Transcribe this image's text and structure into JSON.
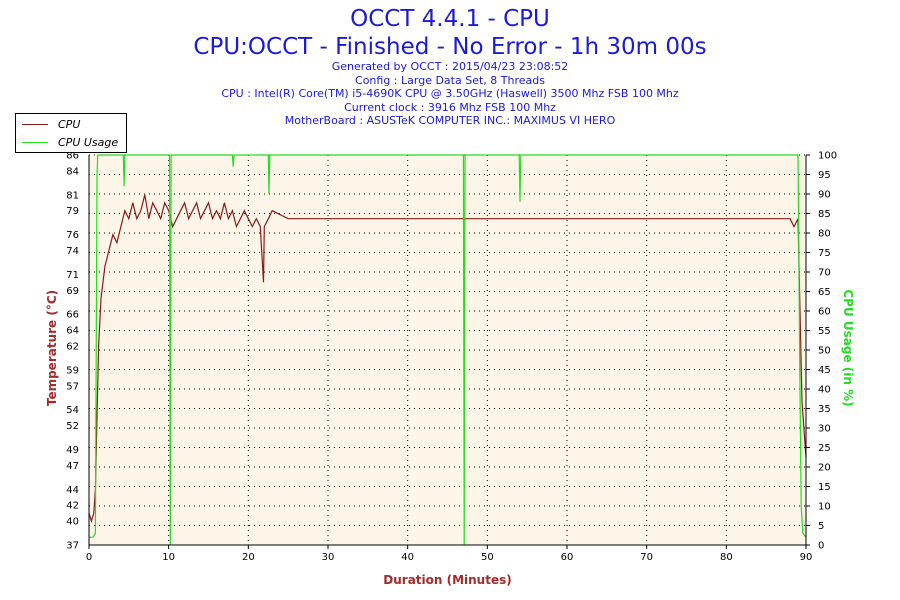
{
  "header": {
    "title": "OCCT 4.4.1 - CPU",
    "subtitle": "CPU:OCCT - Finished - No Error - 1h 30m 00s",
    "info": [
      "Generated by OCCT : 2015/04/23 23:08:52",
      "Config : Large Data Set, 8 Threads",
      "CPU : Intel(R) Core(TM) i5-4690K CPU @ 3.50GHz (Haswell) 3500 Mhz FSB 100 Mhz",
      "Current clock : 3916 Mhz FSB 100 Mhz",
      "MotherBoard : ASUSTeK COMPUTER INC.: MAXIMUS VI HERO"
    ]
  },
  "colors": {
    "temperature": "#8b1a1a",
    "usage": "#22dd22",
    "plot_bg": "#fdf6e8",
    "axis_label_left": "#a52a2a",
    "axis_label_right": "#22dd22",
    "title": "#1a1ad9"
  },
  "chart_data": {
    "type": "line",
    "title": "OCCT 4.4.1 - CPU",
    "xlabel": "Duration (Minutes)",
    "ylabel_left": "Temperature (°C)",
    "ylabel_right": "CPU Usage (in %)",
    "xlim": [
      0,
      90
    ],
    "ylim_left": [
      37,
      86
    ],
    "ylim_right": [
      0,
      100
    ],
    "x_ticks": [
      0,
      10,
      20,
      30,
      40,
      50,
      60,
      70,
      80,
      90
    ],
    "y_ticks_left": [
      37,
      40,
      42,
      44,
      47,
      49,
      52,
      54,
      57,
      59,
      62,
      64,
      66,
      69,
      71,
      74,
      76,
      79,
      81,
      84,
      86
    ],
    "y_ticks_right": [
      0,
      5,
      10,
      15,
      20,
      25,
      30,
      35,
      40,
      45,
      50,
      55,
      60,
      65,
      70,
      75,
      80,
      85,
      90,
      95,
      100
    ],
    "grid": true,
    "legend_position": "top-left",
    "series": [
      {
        "name": "CPU",
        "axis": "left",
        "x": [
          0,
          0.3,
          0.6,
          0.8,
          1.0,
          1.2,
          1.5,
          2.0,
          2.5,
          3.0,
          3.5,
          4.0,
          4.5,
          5.0,
          5.5,
          6.0,
          6.5,
          7.0,
          7.5,
          8.0,
          8.5,
          9.0,
          9.5,
          10.0,
          10.5,
          11.0,
          11.5,
          12.0,
          12.5,
          13.0,
          13.5,
          14.0,
          14.5,
          15.0,
          15.5,
          16.0,
          16.5,
          17.0,
          17.5,
          18.0,
          18.5,
          19.0,
          19.5,
          20.0,
          20.5,
          21.0,
          21.5,
          21.9,
          22.0,
          22.5,
          23.0,
          25.0,
          30.0,
          35.0,
          40.0,
          45.0,
          50.0,
          55.0,
          60.0,
          65.0,
          70.0,
          75.0,
          80.0,
          85.0,
          88.0,
          88.5,
          89.0,
          89.5,
          90.0
        ],
        "y": [
          41,
          40,
          41,
          44,
          53,
          62,
          68,
          72,
          74,
          76,
          75,
          77,
          79,
          78,
          80,
          78,
          79,
          81,
          78,
          80,
          79,
          78,
          80,
          79,
          77,
          78,
          79,
          80,
          78,
          79,
          80,
          78,
          79,
          80,
          78,
          79,
          78,
          80,
          78,
          79,
          77,
          78,
          79,
          78,
          77,
          78,
          77,
          70,
          77,
          78,
          79,
          78,
          78,
          78,
          78,
          78,
          78,
          78,
          78,
          78,
          78,
          78,
          78,
          78,
          78,
          77,
          78,
          55,
          48
        ]
      },
      {
        "name": "CPU Usage",
        "axis": "right",
        "x": [
          0,
          0.5,
          0.8,
          1.0,
          1.1,
          4.3,
          4.4,
          4.5,
          10.1,
          10.2,
          10.3,
          18.0,
          18.1,
          18.2,
          22.5,
          22.6,
          22.7,
          47.0,
          47.1,
          47.2,
          54.0,
          54.1,
          54.2,
          89.0,
          89.2,
          89.4,
          89.6,
          90.0
        ],
        "y": [
          2,
          2,
          3,
          95,
          100,
          100,
          92,
          100,
          100,
          0,
          100,
          100,
          97,
          100,
          100,
          90,
          100,
          100,
          0,
          100,
          100,
          88,
          100,
          100,
          50,
          10,
          3,
          2
        ]
      }
    ]
  }
}
